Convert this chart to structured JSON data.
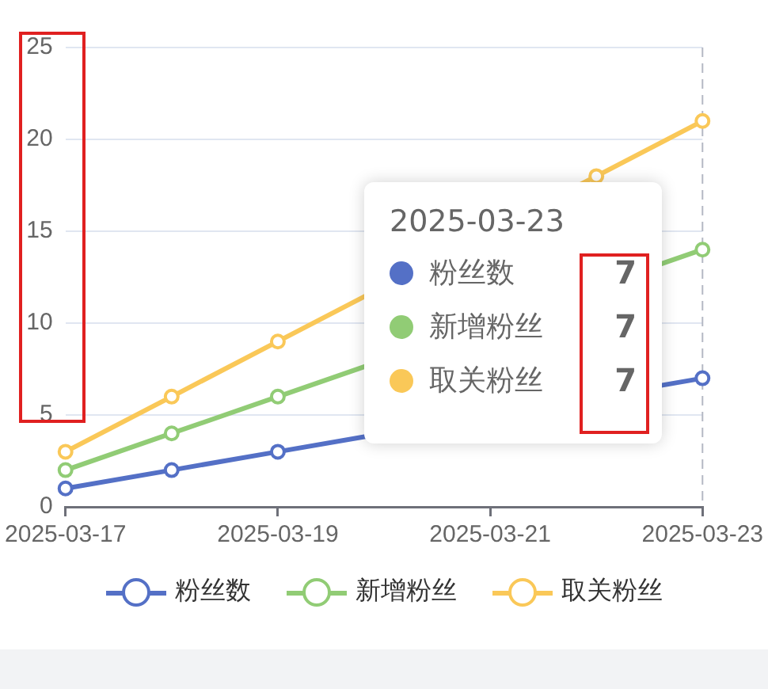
{
  "chart_data": {
    "type": "line",
    "categories": [
      "2025-03-17",
      null,
      "2025-03-19",
      null,
      "2025-03-21",
      null,
      "2025-03-23"
    ],
    "ylim": [
      0,
      25
    ],
    "yticks": [
      0,
      5,
      10,
      15,
      20,
      25
    ],
    "grid": "y",
    "legend": "bottom",
    "marker": "circle",
    "line_style": "solid",
    "series": [
      {
        "name": "粉丝数",
        "color": "#5470c6",
        "values": [
          1,
          2,
          3,
          null,
          null,
          null,
          7
        ]
      },
      {
        "name": "新增粉丝",
        "color": "#91cc75",
        "values": [
          2,
          4,
          6,
          null,
          null,
          null,
          14
        ]
      },
      {
        "name": "取关粉丝",
        "color": "#fac858",
        "values": [
          3,
          6,
          9,
          null,
          null,
          18,
          21
        ]
      }
    ],
    "ref_lines": [
      {
        "axis": "x",
        "value": "2025-03-23",
        "color": "#b4b8c4",
        "line_style": "dashed"
      }
    ],
    "annotations": [
      "2025-03-23",
      "7",
      "7",
      "7"
    ]
  }
}
